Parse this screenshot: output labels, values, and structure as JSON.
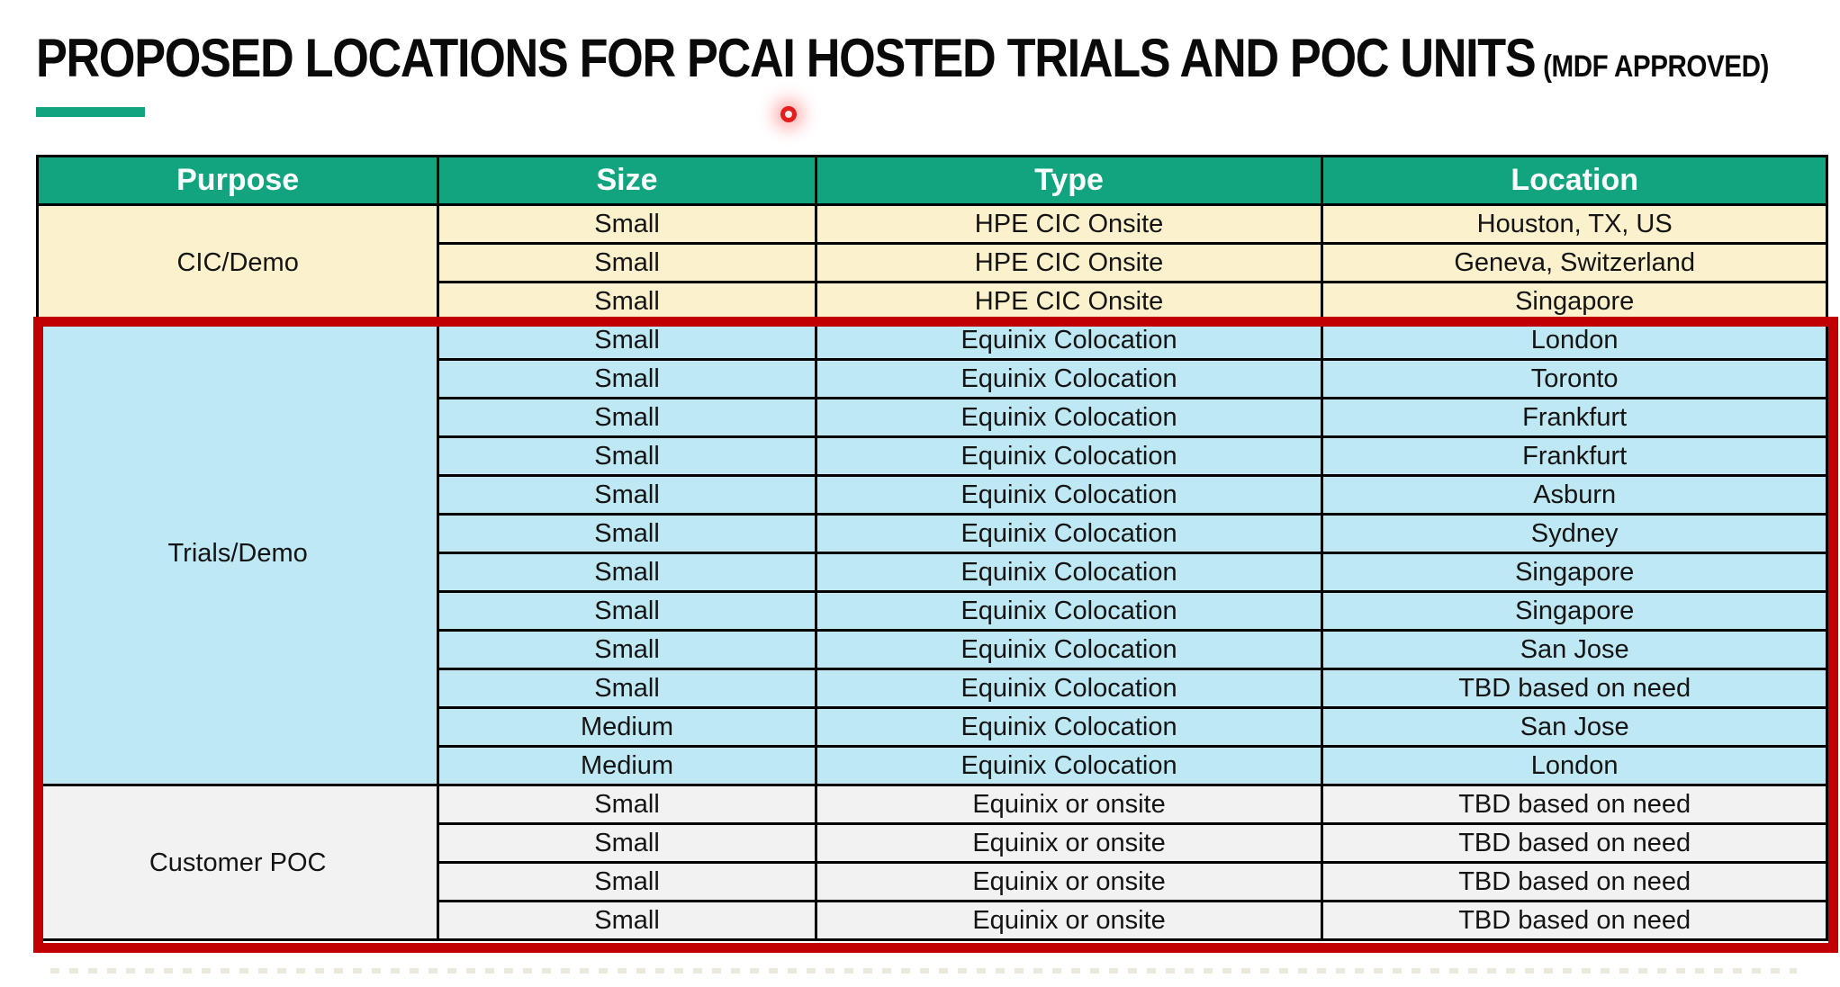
{
  "page": {
    "title": "PROPOSED LOCATIONS FOR PCAI HOSTED TRIALS AND POC UNITS",
    "title_suffix": "(MDF APPROVED)"
  },
  "colors": {
    "accent_green": "#11A47E",
    "header_green": "#11A47E",
    "header_text": "#FFFFFF",
    "cic_section_bg": "#FBF1CD",
    "trials_section_bg": "#BEE8F3",
    "poc_section_bg": "#F2F2F2",
    "highlight_red": "#C00000",
    "laser_red": "#E41E1E"
  },
  "table": {
    "columns": [
      "Purpose",
      "Size",
      "Type",
      "Location"
    ],
    "sections": [
      {
        "purpose": "CIC/Demo",
        "bg": "#FBF1CD",
        "highlighted": false,
        "rows": [
          {
            "size": "Small",
            "type": "HPE CIC Onsite",
            "location": "Houston, TX, US"
          },
          {
            "size": "Small",
            "type": "HPE CIC Onsite",
            "location": "Geneva, Switzerland"
          },
          {
            "size": "Small",
            "type": "HPE CIC Onsite",
            "location": "Singapore"
          }
        ]
      },
      {
        "purpose": "Trials/Demo",
        "bg": "#BEE8F3",
        "highlighted": true,
        "rows": [
          {
            "size": "Small",
            "type": "Equinix Colocation",
            "location": "London"
          },
          {
            "size": "Small",
            "type": "Equinix Colocation",
            "location": "Toronto"
          },
          {
            "size": "Small",
            "type": "Equinix Colocation",
            "location": "Frankfurt"
          },
          {
            "size": "Small",
            "type": "Equinix Colocation",
            "location": "Frankfurt"
          },
          {
            "size": "Small",
            "type": "Equinix Colocation",
            "location": "Asburn"
          },
          {
            "size": "Small",
            "type": "Equinix Colocation",
            "location": "Sydney"
          },
          {
            "size": "Small",
            "type": "Equinix Colocation",
            "location": "Singapore"
          },
          {
            "size": "Small",
            "type": "Equinix Colocation",
            "location": "Singapore"
          },
          {
            "size": "Small",
            "type": "Equinix Colocation",
            "location": "San Jose"
          },
          {
            "size": "Small",
            "type": "Equinix Colocation",
            "location": "TBD based on need"
          },
          {
            "size": "Medium",
            "type": "Equinix Colocation",
            "location": "San Jose"
          },
          {
            "size": "Medium",
            "type": "Equinix Colocation",
            "location": "London"
          }
        ]
      },
      {
        "purpose": "Customer POC",
        "bg": "#F2F2F2",
        "highlighted": true,
        "rows": [
          {
            "size": "Small",
            "type": "Equinix or onsite",
            "location": "TBD based on need"
          },
          {
            "size": "Small",
            "type": "Equinix or onsite",
            "location": "TBD based on need"
          },
          {
            "size": "Small",
            "type": "Equinix or onsite",
            "location": "TBD based on need"
          },
          {
            "size": "Small",
            "type": "Equinix or onsite",
            "location": "TBD based on need"
          }
        ]
      }
    ]
  }
}
